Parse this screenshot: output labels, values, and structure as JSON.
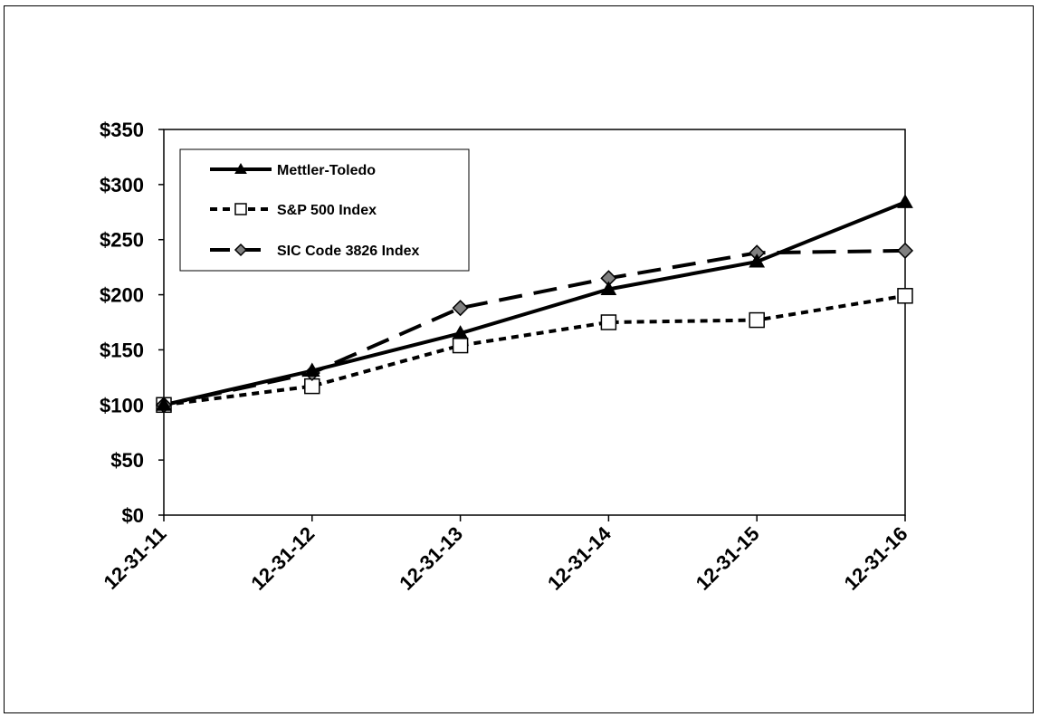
{
  "chart_data": {
    "type": "line",
    "categories": [
      "12-31-11",
      "12-31-12",
      "12-31-13",
      "12-31-14",
      "12-31-15",
      "12-31-16"
    ],
    "y_ticks": [
      "$0",
      "$50",
      "$100",
      "$150",
      "$200",
      "$250",
      "$300",
      "$350"
    ],
    "ylim": [
      0,
      350
    ],
    "legend_position": "top-left",
    "grid": false,
    "series": [
      {
        "name": "Mettler-Toledo",
        "values": [
          100,
          131,
          165,
          205,
          230,
          284
        ],
        "color": "#000000",
        "marker": "triangle",
        "line": "solid"
      },
      {
        "name": "S&P 500 Index",
        "values": [
          100,
          117,
          154,
          175,
          177,
          199
        ],
        "color": "#000000",
        "marker": "square-open",
        "line": "dotted"
      },
      {
        "name": "SIC Code 3826 Index",
        "values": [
          100,
          129,
          188,
          215,
          238,
          240
        ],
        "color": "#808080",
        "marker": "diamond",
        "line": "dashed"
      }
    ]
  }
}
